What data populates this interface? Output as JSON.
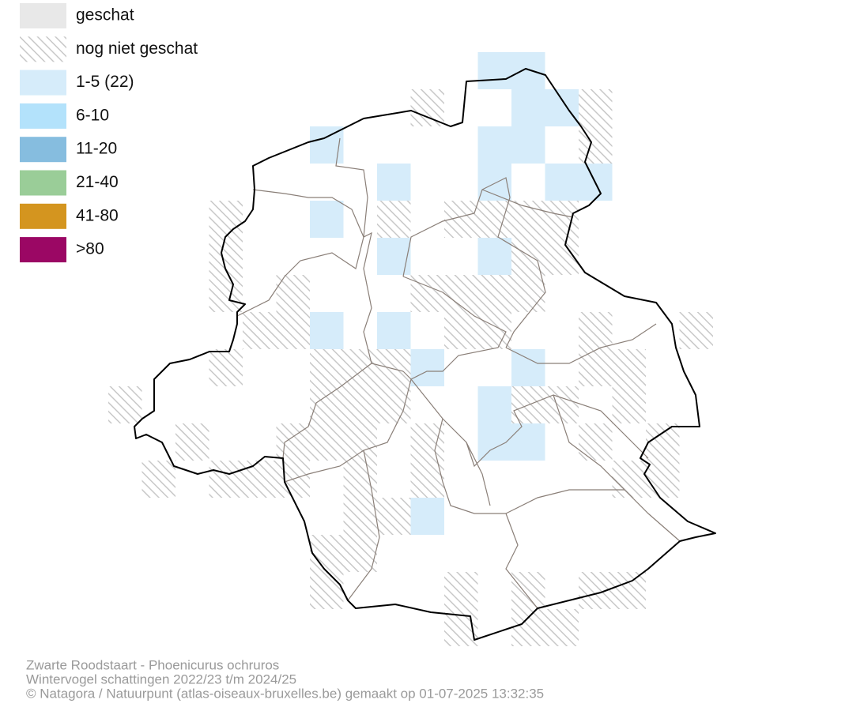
{
  "legend": {
    "items": [
      {
        "label": "geschat",
        "color": "#e8e8e8"
      },
      {
        "label": "nog niet geschat",
        "pattern": "hatch"
      },
      {
        "label": "1-5 (22)",
        "color": "#d6ecfa"
      },
      {
        "label": "6-10",
        "color": "#b3e2fb"
      },
      {
        "label": "11-20",
        "color": "#86bddf"
      },
      {
        "label": "21-40",
        "color": "#9acd98"
      },
      {
        "label": "41-80",
        "color": "#d4951f"
      },
      {
        "label": ">80",
        "color": "#9b0764"
      }
    ]
  },
  "footer": {
    "lines": [
      "Zwarte Roodstaart - Phoenicurus ochruros",
      "Wintervogel schattingen 2022/23 t/m 2024/25",
      "© Natagora / Natuurpunt (atlas-oiseaux-bruxelles.be) gemaakt op 01-07-2025 13:32:35"
    ]
  }
}
